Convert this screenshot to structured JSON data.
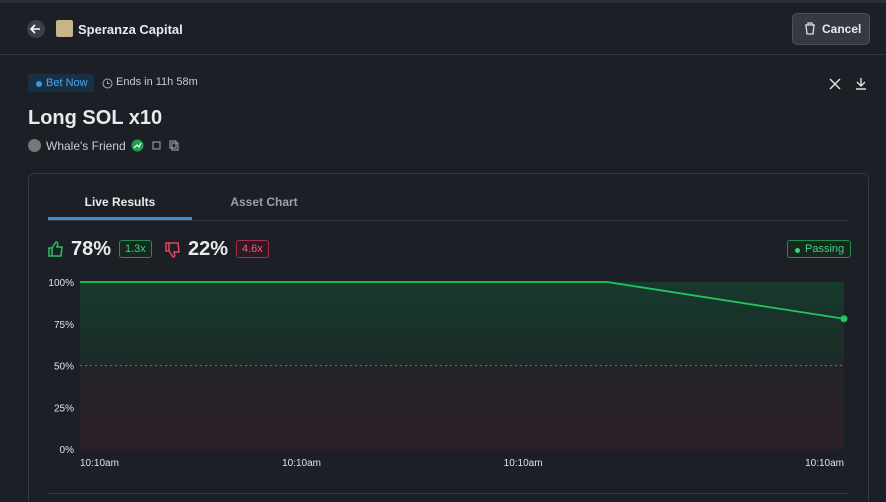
{
  "header": {
    "title": "Speranza Capital",
    "cancel": "Cancel"
  },
  "status": {
    "badge": "Bet Now",
    "ends": "Ends in 11h 58m"
  },
  "bet": {
    "title": "Long SOL x10",
    "author": "Whale's Friend"
  },
  "tabs": [
    "Live Results",
    "Asset Chart"
  ],
  "results": {
    "yes_percent": "78%",
    "yes_multiplier": "1.3x",
    "no_percent": "22%",
    "no_multiplier": "4.6x",
    "state": "Passing"
  },
  "chart_data": {
    "type": "line",
    "x": [
      0,
      0.69,
      1
    ],
    "xlim": [
      0,
      1
    ],
    "xticks": [
      {
        "value": 0,
        "label": "10:10am"
      },
      {
        "value": 0.29,
        "label": "10:10am"
      },
      {
        "value": 0.58,
        "label": "10:10am"
      },
      {
        "value": 1,
        "label": "10:10am"
      }
    ],
    "series": [
      {
        "color": "#22c55e",
        "values": [
          100,
          100,
          78
        ]
      }
    ],
    "ylim": [
      0,
      100
    ],
    "yticks": [
      {
        "value": 0,
        "label": "0%"
      },
      {
        "value": 25,
        "label": "25%"
      },
      {
        "value": 50,
        "label": "50%"
      },
      {
        "value": 75,
        "label": "75%"
      },
      {
        "value": 100,
        "label": "100%"
      }
    ],
    "midline": 50
  }
}
